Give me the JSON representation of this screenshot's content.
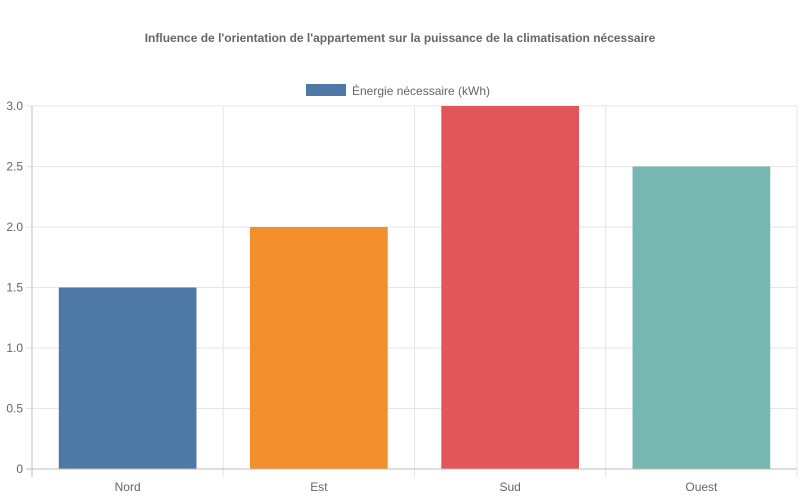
{
  "chart_data": {
    "type": "bar",
    "title": "Influence de l'orientation de l'appartement sur la puissance de la climatisation nécessaire",
    "categories": [
      "Nord",
      "Est",
      "Sud",
      "Ouest"
    ],
    "series": [
      {
        "name": "Énergie nécessaire (kWh)",
        "values": [
          1.5,
          2.0,
          3.0,
          2.5
        ]
      }
    ],
    "bar_colors": [
      "#4e79a7",
      "#f28e2b",
      "#e15759",
      "#76b7b2"
    ],
    "legend_color": "#4e79a7",
    "ylim": [
      0,
      3.0
    ],
    "yticks": [
      "0",
      "0.5",
      "1.0",
      "1.5",
      "2.0",
      "2.5",
      "3.0"
    ],
    "ytick_values": [
      0,
      0.5,
      1.0,
      1.5,
      2.0,
      2.5,
      3.0
    ],
    "xlabel": "",
    "ylabel": "",
    "grid": true,
    "legend_position": "top-center"
  }
}
